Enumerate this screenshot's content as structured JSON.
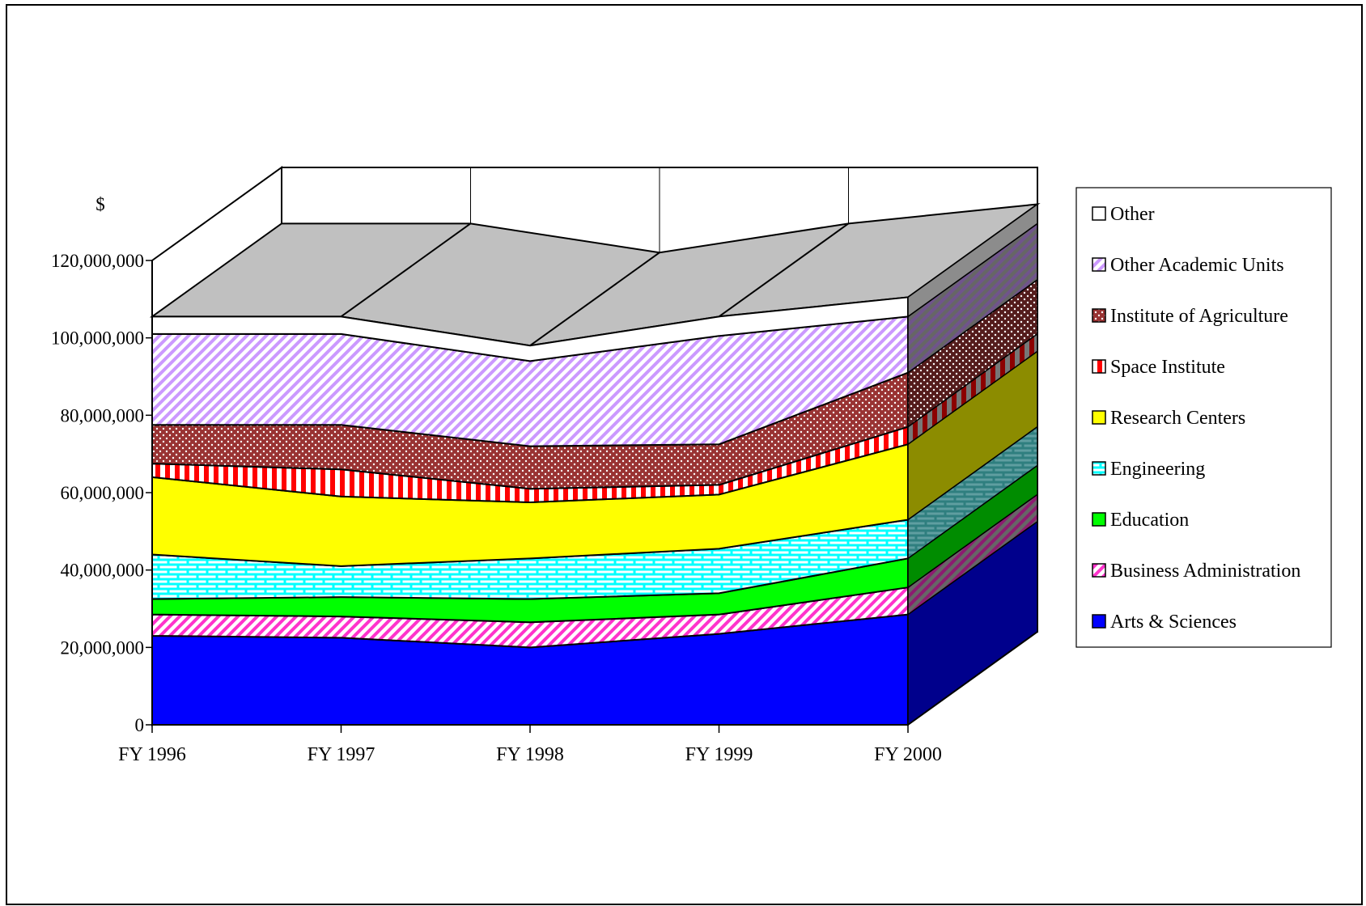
{
  "chart_data": {
    "type": "area",
    "stacked": true,
    "three_d": true,
    "unit_label": "$",
    "categories": [
      "FY 1996",
      "FY 1997",
      "FY 1998",
      "FY 1999",
      "FY 2000"
    ],
    "y_ticks": [
      {
        "value": 0,
        "label": "0"
      },
      {
        "value": 20000000,
        "label": "20,000,000"
      },
      {
        "value": 40000000,
        "label": "40,000,000"
      },
      {
        "value": 60000000,
        "label": "60,000,000"
      },
      {
        "value": 80000000,
        "label": "80,000,000"
      },
      {
        "value": 100000000,
        "label": "100,000,000"
      },
      {
        "value": 120000000,
        "label": "120,000,000"
      }
    ],
    "ylim": [
      0,
      120000000
    ],
    "legend_position": "right",
    "series": [
      {
        "name": "Arts & Sciences",
        "color": "#0000ff",
        "pattern": "solid",
        "values": [
          23000000,
          22500000,
          20000000,
          23500000,
          28500000
        ]
      },
      {
        "name": "Business Administration",
        "color": "#ff33cc",
        "pattern": "diagonal",
        "values": [
          5500000,
          5500000,
          6500000,
          5000000,
          7000000
        ]
      },
      {
        "name": "Education",
        "color": "#00ff00",
        "pattern": "solid",
        "values": [
          4000000,
          5000000,
          6000000,
          5500000,
          7500000
        ]
      },
      {
        "name": "Engineering",
        "color": "#00ffff",
        "pattern": "brick",
        "values": [
          11500000,
          8000000,
          10500000,
          11500000,
          10000000
        ]
      },
      {
        "name": "Research Centers",
        "color": "#ffff00",
        "pattern": "solid",
        "values": [
          20000000,
          18000000,
          14500000,
          14000000,
          19500000
        ]
      },
      {
        "name": "Space Institute",
        "color": "#ff0000",
        "pattern": "vertical",
        "values": [
          3500000,
          7000000,
          3500000,
          2500000,
          4500000
        ]
      },
      {
        "name": "Institute of Agriculture",
        "color": "#993333",
        "pattern": "dots",
        "values": [
          10000000,
          11500000,
          11000000,
          10500000,
          14000000
        ]
      },
      {
        "name": "Other Academic Units",
        "color": "#cc99ff",
        "pattern": "diagonal",
        "values": [
          23500000,
          23500000,
          22000000,
          28000000,
          14500000
        ]
      },
      {
        "name": "Other",
        "color": "#ffffff",
        "pattern": "solid",
        "values": [
          4500000,
          4500000,
          4000000,
          5000000,
          5000000
        ]
      }
    ]
  }
}
